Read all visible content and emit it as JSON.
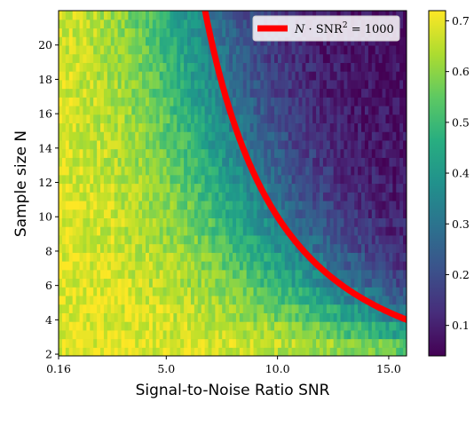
{
  "chart_data": {
    "type": "heatmap",
    "xlabel": "Signal-to-Noise Ratio SNR",
    "ylabel": "Sample size N",
    "xlim": [
      0.16,
      15.8
    ],
    "ylim": [
      1.9,
      22
    ],
    "x_ticks": [
      {
        "value": 0.16,
        "label": "0.16"
      },
      {
        "value": 5,
        "label": "5.0"
      },
      {
        "value": 10,
        "label": "10.0"
      },
      {
        "value": 15,
        "label": "15.0"
      }
    ],
    "y_ticks": [
      {
        "value": 2,
        "label": "2"
      },
      {
        "value": 4,
        "label": "4"
      },
      {
        "value": 6,
        "label": "6"
      },
      {
        "value": 8,
        "label": "8"
      },
      {
        "value": 10,
        "label": "10"
      },
      {
        "value": 12,
        "label": "12"
      },
      {
        "value": 14,
        "label": "14"
      },
      {
        "value": 16,
        "label": "16"
      },
      {
        "value": 18,
        "label": "18"
      },
      {
        "value": 20,
        "label": "20"
      }
    ],
    "colorbar": {
      "colormap": "viridis",
      "range": [
        0.04,
        0.72
      ],
      "ticks": [
        {
          "value": 0.1,
          "label": "0.1"
        },
        {
          "value": 0.2,
          "label": "0.2"
        },
        {
          "value": 0.3,
          "label": "0.3"
        },
        {
          "value": 0.4,
          "label": "0.4"
        },
        {
          "value": 0.5,
          "label": "0.5"
        },
        {
          "value": 0.6,
          "label": "0.6"
        },
        {
          "value": 0.7,
          "label": "0.7"
        }
      ]
    },
    "heatmap_description": {
      "high_region_value": 0.7,
      "low_region_value": 0.06,
      "transition": "values decrease from ~0.7 at low SNR to ~0.06 at high SNR; the transition SNR shrinks as N grows"
    },
    "curve": {
      "name": "N · SNR² = 1000",
      "equation_constant": 1000,
      "color": "#ff0000"
    },
    "legend": {
      "placement": "top-right",
      "label_parts": [
        "N",
        " · SNR",
        "2",
        " = 1000"
      ]
    }
  }
}
